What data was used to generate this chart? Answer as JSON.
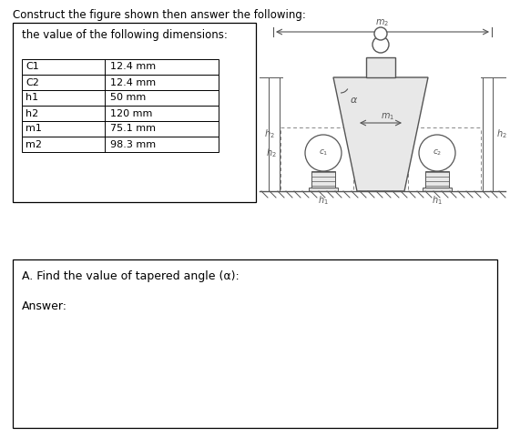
{
  "title": "Construct the figure shown then answer the following:",
  "subtitle": "the value of the following dimensions:",
  "table_data": [
    [
      "C1",
      "12.4 mm"
    ],
    [
      "C2",
      "12.4 mm"
    ],
    [
      "h1",
      "50 mm"
    ],
    [
      "h2",
      "120 mm"
    ],
    [
      "m1",
      "75.1 mm"
    ],
    [
      "m2",
      "98.3 mm"
    ]
  ],
  "question": "A. Find the value of tapered angle (α):",
  "answer_label": "Answer:",
  "bg_color": "#ffffff",
  "border_color": "#000000",
  "text_color": "#000000",
  "line_color": "#555555",
  "draw_bg": "#f5f5f5"
}
